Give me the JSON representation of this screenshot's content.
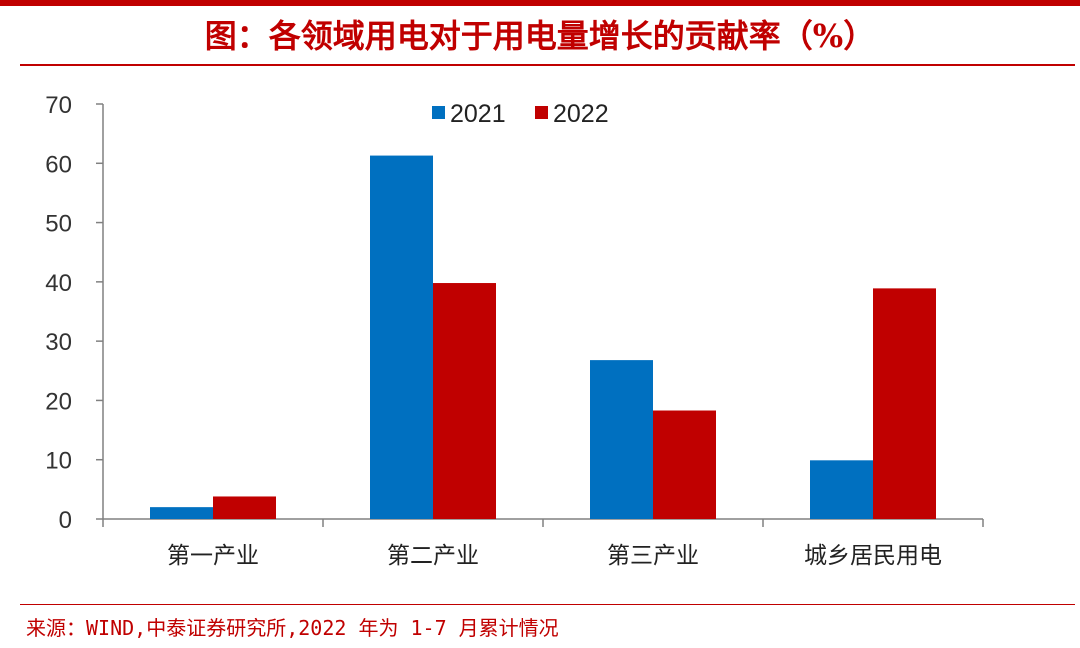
{
  "title": "图：各领域用电对于用电量增长的贡献率（%）",
  "source": "来源：WIND,中泰证券研究所,2022 年为 1-7 月累计情况",
  "chart_data": {
    "type": "bar",
    "categories": [
      "第一产业",
      "第二产业",
      "第三产业",
      "城乡居民用电"
    ],
    "series": [
      {
        "name": "2021",
        "color": "#0070c0",
        "values": [
          2.0,
          61.3,
          26.8,
          9.9
        ]
      },
      {
        "name": "2022",
        "color": "#c00000",
        "values": [
          3.8,
          39.8,
          18.3,
          38.9
        ]
      }
    ],
    "yticks": [
      "0",
      "10",
      "20",
      "30",
      "40",
      "50",
      "60",
      "70"
    ],
    "ylim": [
      0,
      70
    ],
    "legend": "top-center",
    "grid": false
  }
}
